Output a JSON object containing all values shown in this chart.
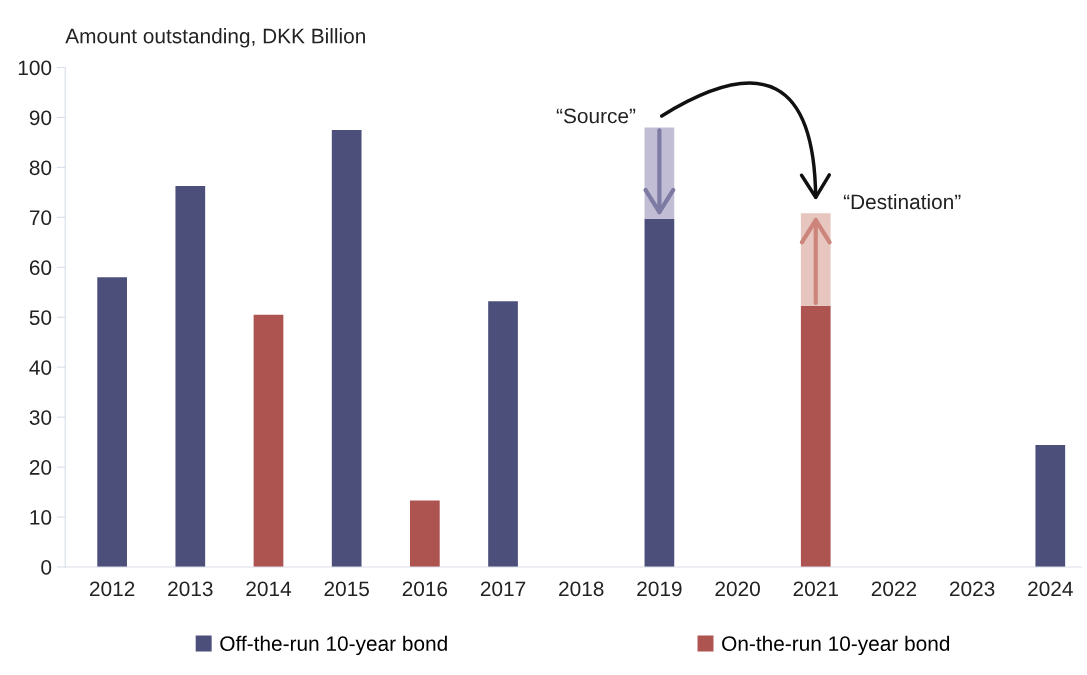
{
  "chart_data": {
    "type": "bar",
    "stacked": true,
    "ylabel": "Amount outstanding, DKK Billion",
    "categories": [
      "2012",
      "2013",
      "2014",
      "2015",
      "2016",
      "2017",
      "2018",
      "2019",
      "2020",
      "2021",
      "2022",
      "2023",
      "2024"
    ],
    "series": [
      {
        "name": "Off-the-run 10-year bond",
        "color": "#4c4f7a",
        "values": [
          58,
          76.3,
          null,
          87.5,
          null,
          53.2,
          null,
          69.7,
          null,
          null,
          null,
          null,
          24.4
        ]
      },
      {
        "name": "On-the-run 10-year bond",
        "color": "#ad5350",
        "values": [
          null,
          null,
          50.5,
          null,
          13.3,
          null,
          null,
          null,
          null,
          52.3,
          null,
          null,
          null
        ]
      },
      {
        "colors": [
          null,
          null,
          null,
          null,
          null,
          null,
          null,
          "#c0bdd5",
          null,
          "#e6c6be",
          null,
          null,
          null
        ],
        "values": [
          null,
          null,
          null,
          null,
          null,
          null,
          null,
          18.3,
          null,
          18.5,
          null,
          null,
          null
        ]
      }
    ],
    "annotations": [
      {
        "text": "“Source”",
        "x": "2019",
        "y": 88
      },
      {
        "text": "“Destination”",
        "x": "2021",
        "y": 70.8
      }
    ],
    "ylim": [
      0,
      100
    ],
    "yticks": [
      0,
      10,
      20,
      30,
      40,
      50,
      60,
      70,
      80,
      90,
      100
    ],
    "grid": false,
    "legend": "bottom"
  }
}
